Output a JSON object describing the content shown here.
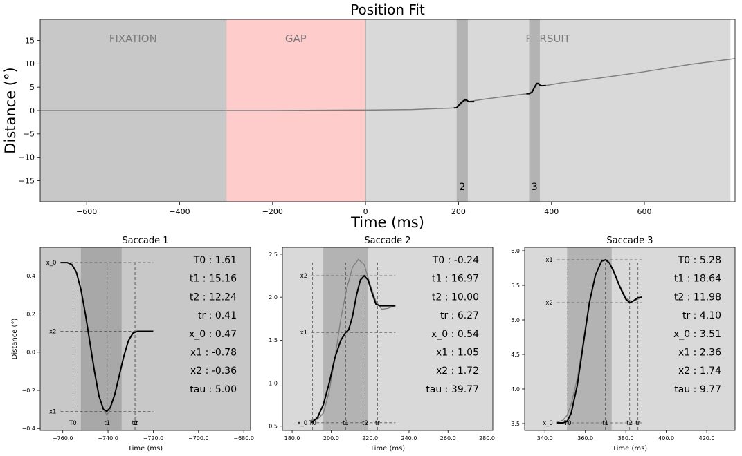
{
  "figure": {
    "background": "#ffffff"
  },
  "chart_data": [
    {
      "type": "line",
      "title": "Position Fit",
      "xlabel": "Time (ms)",
      "ylabel": "Distance (°)",
      "xlim": [
        -700,
        795
      ],
      "ylim": [
        -19.5,
        19.5
      ],
      "xticks": [
        -600,
        -400,
        -200,
        0,
        200,
        400,
        600
      ],
      "yticks": [
        -15,
        -10,
        -5,
        0,
        5,
        10,
        15
      ],
      "grid": false,
      "phases": [
        {
          "label": "FIXATION",
          "start": -700,
          "end": -300,
          "color": "#c8c8c8"
        },
        {
          "label": "GAP",
          "start": -300,
          "end": 0,
          "color": "#ffcccc"
        },
        {
          "label": "PURSUIT",
          "start": 0,
          "end": 785,
          "color": "#d9d9d9"
        }
      ],
      "saccade_windows": [
        {
          "label": "2",
          "start": 196,
          "end": 220
        },
        {
          "label": "3",
          "start": 352,
          "end": 375
        }
      ],
      "series": [
        {
          "role": "eye_position",
          "color": "#7f7f7f",
          "x": [
            -700,
            -600,
            -500,
            -400,
            -300,
            -200,
            -100,
            0,
            100,
            150,
            180,
            196,
            205,
            212,
            220,
            260,
            300,
            340,
            352,
            362,
            370,
            378,
            385,
            420,
            500,
            600,
            700,
            795
          ],
          "y": [
            0,
            0,
            0,
            0,
            0,
            0,
            0.05,
            0.1,
            0.2,
            0.4,
            0.5,
            0.6,
            1.3,
            2.1,
            1.9,
            2.5,
            3.0,
            3.5,
            3.6,
            4.6,
            5.7,
            5.3,
            5.3,
            5.9,
            6.9,
            8.3,
            9.9,
            11.1
          ]
        },
        {
          "role": "fit",
          "color": "#000000",
          "segments": [
            {
              "x": [
                190,
                196,
                202,
                208,
                214,
                218,
                222,
                234
              ],
              "y": [
                0.55,
                0.6,
                1.3,
                1.9,
                2.3,
                2.2,
                1.9,
                1.9
              ]
            },
            {
              "x": [
                346,
                352,
                358,
                363,
                368,
                372,
                376,
                380,
                388
              ],
              "y": [
                3.6,
                3.6,
                3.9,
                4.9,
                5.8,
                5.8,
                5.35,
                5.3,
                5.35
              ]
            }
          ]
        }
      ]
    },
    {
      "type": "line",
      "title": "Saccade 1",
      "xlabel": "Time (ms)",
      "ylabel": "Distance (°)",
      "xlim": [
        -770,
        -677
      ],
      "ylim": [
        -0.41,
        0.55
      ],
      "xticks": [
        -760,
        -740,
        -720,
        -700,
        -680
      ],
      "yticks": [
        -0.4,
        -0.2,
        0.0,
        0.2,
        0.4
      ],
      "tick_format": "{:.1f}",
      "saccade_window": {
        "start": -752,
        "end": -734
      },
      "hlines": [
        {
          "label": "x_0",
          "y": 0.47
        },
        {
          "label": "x2",
          "y": 0.11
        },
        {
          "label": "x1",
          "y": -0.31
        }
      ],
      "vlines": [
        {
          "label": "T0",
          "x": -755.5
        },
        {
          "label": "t1",
          "x": -740.4
        },
        {
          "label": "t2",
          "x": -728.1
        },
        {
          "label": "tr",
          "x": -727.7
        }
      ],
      "params": [
        "T0 : 1.61",
        "t1 : 15.16",
        "t2 : 12.24",
        "tr : 0.41",
        "x_0 : 0.47",
        "x1 : -0.78",
        "x2 : -0.36",
        "tau : 5.00"
      ],
      "series": [
        {
          "role": "eye_position",
          "color": "#7f7f7f",
          "x": [
            -761,
            -758,
            -756,
            -754,
            -752,
            -750,
            -748,
            -746,
            -744,
            -742,
            -740.5,
            -739,
            -737,
            -735,
            -733,
            -731,
            -729,
            -727,
            -724,
            -720
          ],
          "y": [
            0.47,
            0.47,
            0.46,
            0.42,
            0.33,
            0.2,
            0.05,
            -0.1,
            -0.23,
            -0.3,
            -0.33,
            -0.3,
            -0.22,
            -0.12,
            -0.02,
            0.06,
            0.1,
            0.11,
            0.11,
            0.11
          ]
        },
        {
          "role": "fit",
          "color": "#000000",
          "x": [
            -761,
            -758,
            -756,
            -754,
            -752,
            -750,
            -748,
            -746,
            -744,
            -742,
            -740.5,
            -739,
            -737,
            -735,
            -733,
            -731,
            -729,
            -727,
            -724,
            -720
          ],
          "y": [
            0.47,
            0.47,
            0.46,
            0.42,
            0.33,
            0.2,
            0.05,
            -0.1,
            -0.23,
            -0.3,
            -0.31,
            -0.29,
            -0.22,
            -0.12,
            -0.02,
            0.06,
            0.1,
            0.11,
            0.11,
            0.11
          ]
        }
      ]
    },
    {
      "type": "line",
      "title": "Saccade 2",
      "xlabel": "Time (ms)",
      "ylabel": "",
      "xlim": [
        175,
        283
      ],
      "ylim": [
        0.45,
        2.58
      ],
      "xticks": [
        180,
        200,
        220,
        240,
        260,
        280
      ],
      "yticks": [
        0.5,
        1.0,
        1.5,
        2.0,
        2.5
      ],
      "tick_format": "{:.1f}",
      "saccade_window": {
        "start": 196,
        "end": 219
      },
      "hlines": [
        {
          "label": "x2",
          "y": 2.25
        },
        {
          "label": "x1",
          "y": 1.59
        },
        {
          "label": "x_0",
          "y": 0.54
        }
      ],
      "vlines": [
        {
          "label": "T0",
          "x": 190.5
        },
        {
          "label": "t1",
          "x": 207.5
        },
        {
          "label": "t2",
          "x": 217.5
        },
        {
          "label": "tr",
          "x": 223.8
        }
      ],
      "params": [
        "T0 : -0.24",
        "t1 : 16.97",
        "t2 : 10.00",
        "tr : 6.27",
        "x_0 : 0.54",
        "x1 : 1.05",
        "x2 : 1.72",
        "tau : 39.77"
      ],
      "series": [
        {
          "role": "eye_position",
          "color": "#7f7f7f",
          "x": [
            190,
            193,
            196,
            199,
            202,
            205,
            208,
            211,
            214,
            217,
            220,
            223,
            226,
            229,
            233
          ],
          "y": [
            0.57,
            0.58,
            0.65,
            0.9,
            1.3,
            1.75,
            2.1,
            2.35,
            2.44,
            2.38,
            2.15,
            1.95,
            1.86,
            1.87,
            1.9
          ]
        },
        {
          "role": "fit",
          "color": "#000000",
          "x": [
            190,
            193,
            196,
            199,
            202,
            205,
            207.5,
            209,
            211,
            213,
            215,
            217,
            219,
            221,
            223,
            225,
            229,
            233
          ],
          "y": [
            0.54,
            0.6,
            0.75,
            1.0,
            1.3,
            1.5,
            1.59,
            1.62,
            1.78,
            2.02,
            2.2,
            2.25,
            2.2,
            2.05,
            1.92,
            1.9,
            1.9,
            1.9
          ]
        }
      ]
    },
    {
      "type": "line",
      "title": "Saccade 3",
      "xlabel": "Time (ms)",
      "ylabel": "",
      "xlim": [
        330,
        434
      ],
      "ylim": [
        3.4,
        6.05
      ],
      "xticks": [
        340,
        360,
        380,
        400,
        420
      ],
      "yticks": [
        3.5,
        4.0,
        4.5,
        5.0,
        5.5,
        6.0
      ],
      "tick_format": "{:.1f}",
      "saccade_window": {
        "start": 351,
        "end": 373
      },
      "hlines": [
        {
          "label": "x1",
          "y": 5.87
        },
        {
          "label": "x2",
          "y": 5.25
        },
        {
          "label": "x_0",
          "y": 3.51
        }
      ],
      "vlines": [
        {
          "label": "T0",
          "x": 351.3
        },
        {
          "label": "t1",
          "x": 369.9
        },
        {
          "label": "t2",
          "x": 381.9
        },
        {
          "label": "tr",
          "x": 386.0
        }
      ],
      "params": [
        "T0 : 5.28",
        "t1 : 18.64",
        "t2 : 11.98",
        "tr : 4.10",
        "x_0 : 3.51",
        "x1 : 2.36",
        "x2 : 1.74",
        "tau : 9.77"
      ],
      "series": [
        {
          "role": "eye_position",
          "color": "#7f7f7f",
          "x": [
            346,
            349,
            351,
            353,
            356,
            359,
            362,
            365,
            368,
            371,
            374,
            377,
            380,
            383,
            386,
            388
          ],
          "y": [
            3.52,
            3.55,
            3.62,
            3.78,
            4.15,
            4.7,
            5.25,
            5.65,
            5.85,
            5.87,
            5.72,
            5.5,
            5.32,
            5.26,
            5.3,
            5.33
          ]
        },
        {
          "role": "fit",
          "color": "#000000",
          "x": [
            346,
            349,
            351,
            353,
            356,
            359,
            362,
            365,
            368,
            370,
            372,
            374,
            377,
            380,
            382,
            384,
            386,
            388
          ],
          "y": [
            3.51,
            3.51,
            3.53,
            3.65,
            4.05,
            4.65,
            5.25,
            5.65,
            5.85,
            5.87,
            5.82,
            5.7,
            5.48,
            5.3,
            5.25,
            5.28,
            5.32,
            5.33
          ]
        }
      ]
    }
  ]
}
